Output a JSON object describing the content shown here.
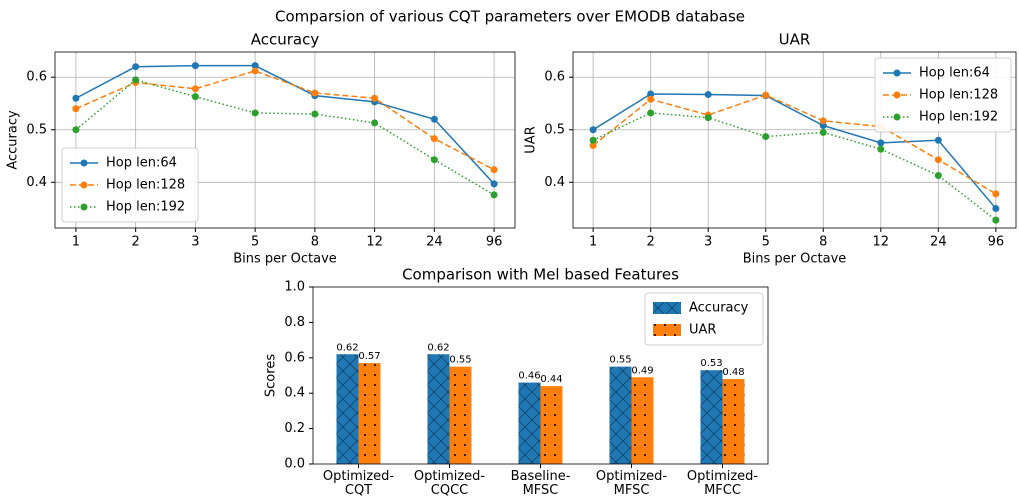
{
  "title": "Comparsion of various CQT parameters over EMODB database",
  "chart_data": [
    {
      "type": "line",
      "title": "Accuracy",
      "xlabel": "Bins per Octave",
      "ylabel": "Accuracy",
      "categories": [
        "1",
        "2",
        "3",
        "5",
        "8",
        "12",
        "24",
        "96"
      ],
      "ylim": [
        0.313,
        0.648
      ],
      "yticks": [
        0.4,
        0.5,
        0.6
      ],
      "grid": true,
      "legend": "lower left",
      "series": [
        {
          "name": "Hop len:64",
          "color": "#1f77b4",
          "linestyle": "solid",
          "values": [
            0.56,
            0.62,
            0.622,
            0.622,
            0.565,
            0.553,
            0.52,
            0.397
          ]
        },
        {
          "name": "Hop len:128",
          "color": "#ff7f0e",
          "linestyle": "dashed",
          "values": [
            0.54,
            0.59,
            0.578,
            0.612,
            0.57,
            0.56,
            0.483,
            0.424
          ]
        },
        {
          "name": "Hop len:192",
          "color": "#2ca02c",
          "linestyle": "dotted",
          "values": [
            0.5,
            0.595,
            0.563,
            0.532,
            0.53,
            0.513,
            0.443,
            0.376
          ]
        }
      ]
    },
    {
      "type": "line",
      "title": "UAR",
      "xlabel": "Bins per Octave",
      "ylabel": "UAR",
      "categories": [
        "1",
        "2",
        "3",
        "5",
        "8",
        "12",
        "24",
        "96"
      ],
      "ylim": [
        0.313,
        0.648
      ],
      "yticks": [
        0.4,
        0.5,
        0.6
      ],
      "grid": true,
      "legend": "upper right",
      "series": [
        {
          "name": "Hop len:64",
          "color": "#1f77b4",
          "linestyle": "solid",
          "values": [
            0.5,
            0.568,
            0.567,
            0.565,
            0.508,
            0.475,
            0.48,
            0.35
          ]
        },
        {
          "name": "Hop len:128",
          "color": "#ff7f0e",
          "linestyle": "dashed",
          "values": [
            0.47,
            0.558,
            0.528,
            0.566,
            0.517,
            0.506,
            0.443,
            0.378
          ]
        },
        {
          "name": "Hop len:192",
          "color": "#2ca02c",
          "linestyle": "dotted",
          "values": [
            0.48,
            0.532,
            0.523,
            0.487,
            0.495,
            0.463,
            0.413,
            0.328
          ]
        }
      ]
    },
    {
      "type": "bar",
      "title": "Comparison with Mel based Features",
      "ylabel": "Scores",
      "categories": [
        "Optimized-\nCQT",
        "Optimized-\nCQCC",
        "Baseline-\nMFSC",
        "Optimized-\nMFSC",
        "Optimized-\nMFCC"
      ],
      "ylim": [
        0,
        1
      ],
      "yticks": [
        {
          "value": 0,
          "label": "0.0"
        },
        0.2,
        0.4,
        0.6,
        0.8,
        {
          "value": 1,
          "label": "1.0"
        }
      ],
      "grid": false,
      "legend": "upper right",
      "series": [
        {
          "name": "Accuracy",
          "color": "#1f77b4",
          "hatch": "x",
          "values": [
            0.62,
            0.62,
            0.46,
            0.55,
            0.53
          ]
        },
        {
          "name": "UAR",
          "color": "#ff7f0e",
          "hatch": ".",
          "values": [
            0.57,
            0.55,
            0.44,
            0.49,
            0.48
          ]
        }
      ]
    }
  ]
}
